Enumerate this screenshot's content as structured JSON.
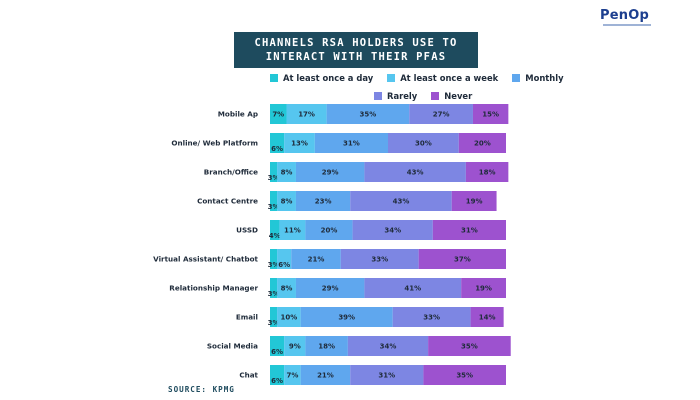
{
  "logo": {
    "text": "PenOp"
  },
  "chart_data": {
    "type": "bar",
    "orientation": "horizontal-stacked",
    "title_lines": [
      "CHANNELS RSA HOLDERS USE TO",
      "INTERACT WITH THEIR PFAS"
    ],
    "categories": [
      "Mobile Ap",
      "Online/ Web Platform",
      "Branch/Office",
      "Contact Centre",
      "USSD",
      "Virtual Assistant/ Chatbot",
      "Relationship Manager",
      "Email",
      "Social Media",
      "Chat"
    ],
    "series": [
      {
        "name": "At least once a day",
        "color": "#22c7d6",
        "values": [
          7,
          6,
          3,
          3,
          4,
          3,
          3,
          3,
          6,
          6
        ]
      },
      {
        "name": "At least once a week",
        "color": "#56c6ef",
        "values": [
          17,
          13,
          8,
          8,
          11,
          6,
          8,
          10,
          9,
          7
        ]
      },
      {
        "name": "Monthly",
        "color": "#5fa7ee",
        "values": [
          35,
          31,
          29,
          23,
          20,
          21,
          29,
          39,
          18,
          21
        ]
      },
      {
        "name": "Rarely",
        "color": "#7d86e3",
        "values": [
          27,
          30,
          43,
          43,
          34,
          33,
          41,
          33,
          34,
          31
        ]
      },
      {
        "name": "Never",
        "color": "#9d52cf",
        "values": [
          15,
          20,
          18,
          19,
          31,
          37,
          19,
          14,
          35,
          35
        ]
      }
    ],
    "value_suffix": "%",
    "xlim": [
      0,
      100
    ],
    "legend_position": "top",
    "grid": false
  },
  "source": "SOURCE: KPMG"
}
